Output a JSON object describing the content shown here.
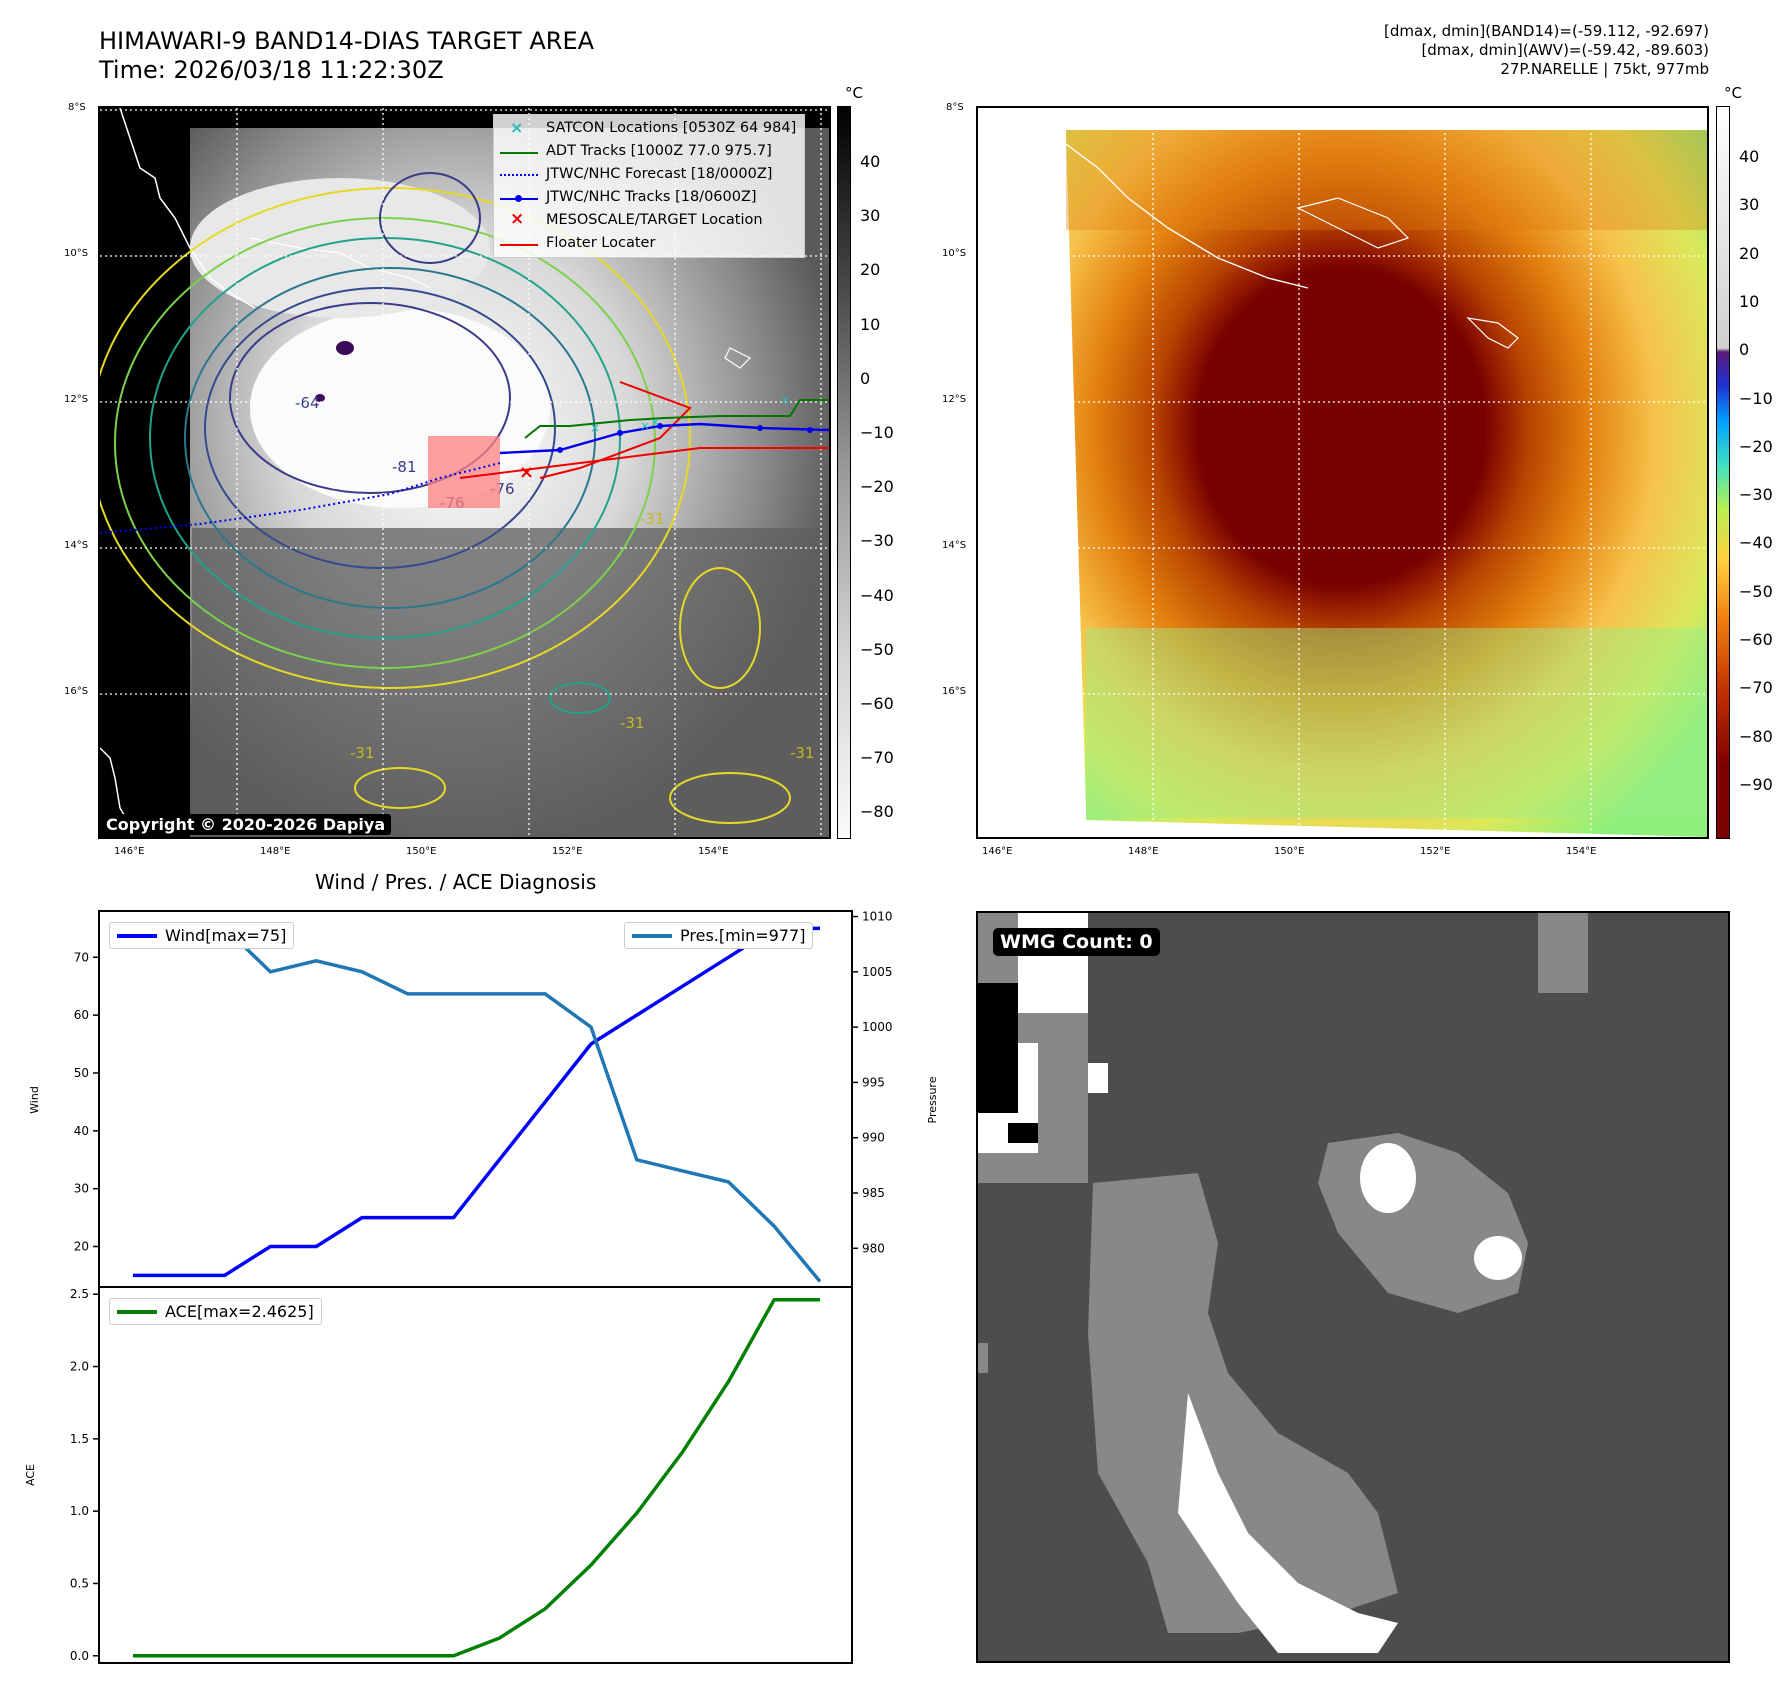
{
  "header": {
    "title_line1": "HIMAWARI-9 BAND14-DIAS TARGET AREA",
    "title_line2": "Time: 2026/03/18 11:22:30Z",
    "info_line1": "[dmax, dmin](BAND14)=(-59.112, -92.697)",
    "info_line2": "[dmax, dmin](AWV)=(-59.42, -89.603)",
    "info_line3": "27P.NARELLE | 75kt, 977mb"
  },
  "map": {
    "lat_labels": [
      "8°S",
      "10°S",
      "12°S",
      "14°S",
      "16°S"
    ],
    "lon_labels": [
      "146°E",
      "148°E",
      "150°E",
      "152°E",
      "154°E"
    ],
    "copyright": "Copyright © 2020-2026 Dapiya",
    "contour_labels": [
      "-64",
      "-81",
      "-76",
      "-76",
      "-31",
      "-31",
      "-31",
      "-31"
    ],
    "legend": {
      "satcon": "SATCON Locations [0530Z 64 984]",
      "adt": "ADT Tracks [1000Z 77.0 975.7]",
      "forecast": "JTWC/NHC Forecast [18/0000Z]",
      "tracks": "JTWC/NHC Tracks [18/0600Z]",
      "mesoscale": "MESOSCALE/TARGET Location",
      "floater": "Floater Locater"
    },
    "colors": {
      "satcon": "#22bbbb",
      "adt": "#007700",
      "forecast": "#0000ee",
      "tracks": "#0000ee",
      "mesoscale": "#ee0000",
      "floater": "#ee0000"
    }
  },
  "colorbar1": {
    "unit": "°C",
    "ticks": [
      "40",
      "30",
      "20",
      "10",
      "0",
      "−10",
      "−20",
      "−30",
      "−40",
      "−50",
      "−60",
      "−70",
      "−80"
    ]
  },
  "colorbar2": {
    "unit": "°C",
    "ticks": [
      "40",
      "30",
      "20",
      "10",
      "0",
      "−10",
      "−20",
      "−30",
      "−40",
      "−50",
      "−60",
      "−70",
      "−80",
      "−90"
    ]
  },
  "wmg": {
    "label": "WMG Count: 0"
  },
  "chart_data": [
    {
      "type": "line",
      "title": "Wind / Pres. / ACE Diagnosis",
      "x": [
        0,
        1,
        2,
        3,
        4,
        5,
        6,
        7,
        8,
        9,
        10,
        11,
        12,
        13,
        14,
        15
      ],
      "series": [
        {
          "name": "Wind[max=75]",
          "axis": "left",
          "color": "#0000ff",
          "values": [
            15,
            15,
            15,
            20,
            20,
            25,
            25,
            25,
            35,
            45,
            55,
            60,
            65,
            70,
            75,
            75
          ]
        },
        {
          "name": "Pres.[min=977]",
          "axis": "right",
          "color": "#1f77b4",
          "values": [
            1009,
            1009,
            1009,
            1005,
            1006,
            1005,
            1003,
            1003,
            1003,
            1003,
            1000,
            988,
            987,
            986,
            982,
            977
          ]
        }
      ],
      "ylabel": "Wind",
      "ylabel_right": "Pressure",
      "ylim": [
        13,
        78
      ],
      "ylim_right": [
        976.5,
        1010.5
      ],
      "yticks": [
        "20",
        "30",
        "40",
        "50",
        "60",
        "70"
      ],
      "yticks_right": [
        "980",
        "985",
        "990",
        "995",
        "1000",
        "1005",
        "1010"
      ]
    },
    {
      "type": "line",
      "x": [
        0,
        1,
        2,
        3,
        4,
        5,
        6,
        7,
        8,
        9,
        10,
        11,
        12,
        13,
        14,
        15
      ],
      "series": [
        {
          "name": "ACE[max=2.4625]",
          "color": "#008000",
          "values": [
            0,
            0,
            0,
            0,
            0,
            0,
            0,
            0,
            0.1225,
            0.325,
            0.6275,
            0.9875,
            1.41,
            1.895,
            2.4625,
            2.4625
          ]
        }
      ],
      "ylabel": "ACE",
      "ylim": [
        -0.05,
        2.55
      ],
      "yticks": [
        "0.0",
        "0.5",
        "1.0",
        "1.5",
        "2.0",
        "2.5"
      ]
    }
  ]
}
